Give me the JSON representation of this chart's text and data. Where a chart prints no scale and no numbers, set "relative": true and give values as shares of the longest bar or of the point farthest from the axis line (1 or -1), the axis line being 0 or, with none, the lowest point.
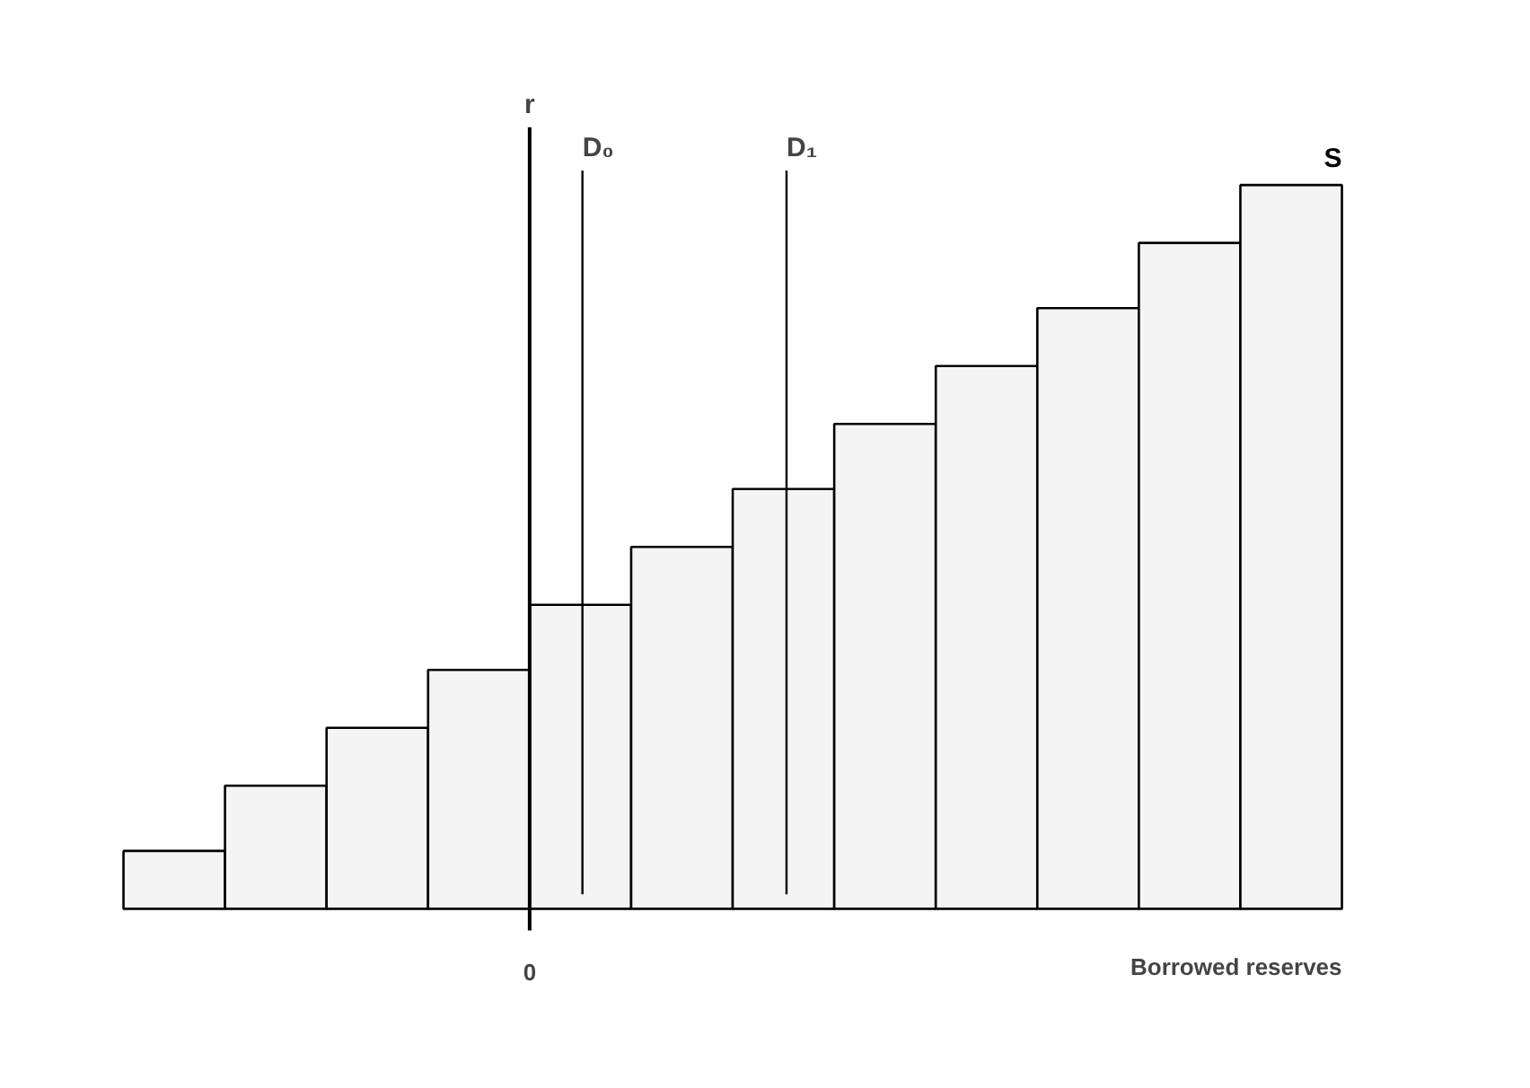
{
  "chart_data": {
    "type": "bar",
    "relative": true,
    "xlabel": "Borrowed reserves",
    "categories": [
      null,
      null,
      null,
      null,
      null,
      null,
      null,
      null,
      null,
      null,
      null,
      null
    ],
    "annotations": [
      "0",
      "r",
      "D₀",
      "D₁"
    ],
    "series": [
      {
        "name": "S",
        "color": "#f4f4f4",
        "values": [
          0.08,
          0.17,
          0.25,
          0.33,
          0.42,
          0.5,
          0.58,
          0.67,
          0.75,
          0.83,
          0.92,
          1.0
        ]
      }
    ],
    "grid": false,
    "legend": false
  }
}
